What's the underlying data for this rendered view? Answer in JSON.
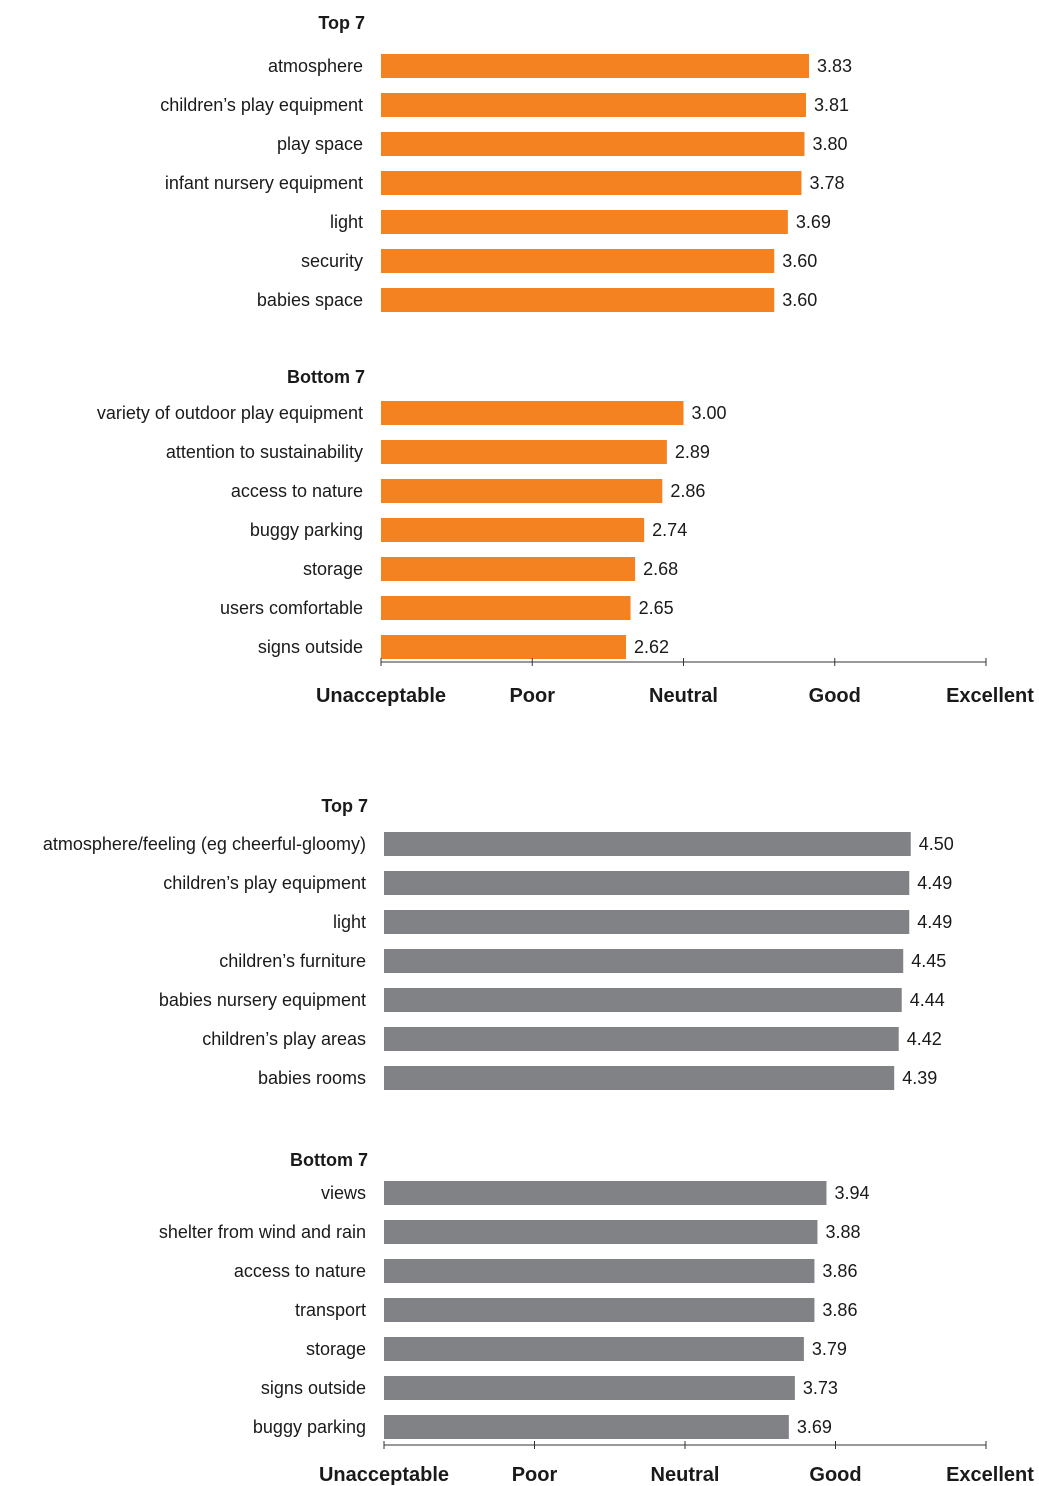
{
  "chart_data": [
    {
      "type": "bar",
      "orientation": "horizontal",
      "color": "#f58220",
      "xlim": [
        1,
        5
      ],
      "x_tick_labels": [
        "Unacceptable",
        "Poor",
        "Neutral",
        "Good",
        "Excellent"
      ],
      "groups": [
        {
          "label": "Top 7",
          "categories": [
            "atmosphere",
            "children’s play equipment",
            "play space",
            "infant nursery equipment",
            "light",
            "security",
            "babies space"
          ],
          "values": [
            3.83,
            3.81,
            3.8,
            3.78,
            3.69,
            3.6,
            3.6
          ],
          "value_labels": [
            "3.83",
            "3.81",
            "3.80",
            "3.78",
            "3.69",
            "3.60",
            "3.60"
          ]
        },
        {
          "label": "Bottom 7",
          "categories": [
            "variety of outdoor play equipment",
            "attention to sustainability",
            "access to nature",
            "buggy parking",
            "storage",
            "users comfortable",
            "signs outside"
          ],
          "values": [
            3.0,
            2.89,
            2.86,
            2.74,
            2.68,
            2.65,
            2.62
          ],
          "value_labels": [
            "3.00",
            "2.89",
            "2.86",
            "2.74",
            "2.68",
            "2.65",
            "2.62"
          ]
        }
      ]
    },
    {
      "type": "bar",
      "orientation": "horizontal",
      "color": "#808285",
      "xlim": [
        1,
        5
      ],
      "x_tick_labels": [
        "Unacceptable",
        "Poor",
        "Neutral",
        "Good",
        "Excellent"
      ],
      "groups": [
        {
          "label": "Top 7",
          "categories": [
            "atmosphere/feeling (eg cheerful-gloomy)",
            "children’s play equipment",
            "light",
            "children’s furniture",
            "babies nursery equipment",
            "children’s play areas",
            "babies rooms"
          ],
          "values": [
            4.5,
            4.49,
            4.49,
            4.45,
            4.44,
            4.42,
            4.39
          ],
          "value_labels": [
            "4.50",
            "4.49",
            "4.49",
            "4.45",
            "4.44",
            "4.42",
            "4.39"
          ]
        },
        {
          "label": "Bottom 7",
          "categories": [
            "views",
            "shelter from wind and rain",
            "access to nature",
            "transport",
            "storage",
            "signs outside",
            "buggy parking"
          ],
          "values": [
            3.94,
            3.88,
            3.86,
            3.86,
            3.79,
            3.73,
            3.69
          ],
          "value_labels": [
            "3.94",
            "3.88",
            "3.86",
            "3.86",
            "3.79",
            "3.73",
            "3.69"
          ]
        }
      ]
    }
  ]
}
